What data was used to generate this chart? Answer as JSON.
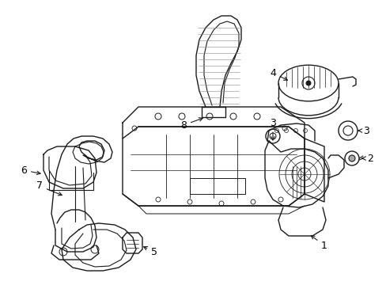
{
  "background_color": "#ffffff",
  "line_color": "#1a1a1a",
  "line_width": 1.0,
  "fig_width": 4.89,
  "fig_height": 3.6,
  "dpi": 100
}
